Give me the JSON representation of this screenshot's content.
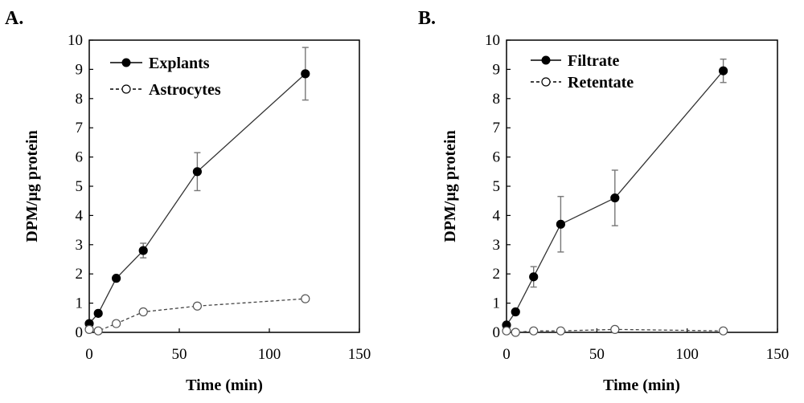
{
  "chart_data": [
    {
      "type": "line",
      "panel_label": "A.",
      "xlabel": "Time (min)",
      "ylabel": "DPM/µg protein",
      "xlim": [
        0,
        150
      ],
      "ylim": [
        0,
        10
      ],
      "xticks": [
        0,
        50,
        100,
        150
      ],
      "yticks": [
        0,
        1,
        2,
        3,
        4,
        5,
        6,
        7,
        8,
        9,
        10
      ],
      "legend_position": "top-left",
      "series": [
        {
          "name": "Explants",
          "marker": "filled-circle",
          "line": "solid",
          "x": [
            0,
            5,
            15,
            30,
            60,
            120
          ],
          "y": [
            0.3,
            0.65,
            1.85,
            2.8,
            5.5,
            8.85
          ],
          "err": [
            0,
            0,
            0,
            0.25,
            0.65,
            0.9
          ]
        },
        {
          "name": "Astrocytes",
          "marker": "open-circle",
          "line": "dashed",
          "x": [
            0,
            5,
            15,
            30,
            60,
            120
          ],
          "y": [
            0.1,
            0.05,
            0.3,
            0.7,
            0.9,
            1.15
          ],
          "err": [
            0,
            0,
            0,
            0,
            0,
            0
          ]
        }
      ]
    },
    {
      "type": "line",
      "panel_label": "B.",
      "xlabel": "Time (min)",
      "ylabel": "DPM/µg protein",
      "xlim": [
        0,
        150
      ],
      "ylim": [
        0,
        10
      ],
      "xticks": [
        0,
        50,
        100,
        150
      ],
      "yticks": [
        0,
        1,
        2,
        3,
        4,
        5,
        6,
        7,
        8,
        9,
        10
      ],
      "legend_position": "top-left",
      "series": [
        {
          "name": "Filtrate",
          "marker": "filled-circle",
          "line": "solid",
          "x": [
            0,
            5,
            15,
            30,
            60,
            120
          ],
          "y": [
            0.25,
            0.7,
            1.9,
            3.7,
            4.6,
            8.95
          ],
          "err": [
            0,
            0,
            0.35,
            0.95,
            0.95,
            0.4
          ]
        },
        {
          "name": "Retentate",
          "marker": "open-circle",
          "line": "dashed",
          "x": [
            0,
            5,
            15,
            30,
            60,
            120
          ],
          "y": [
            0.05,
            0.0,
            0.05,
            0.05,
            0.1,
            0.05
          ],
          "err": [
            0,
            0,
            0,
            0,
            0,
            0
          ]
        }
      ]
    }
  ]
}
